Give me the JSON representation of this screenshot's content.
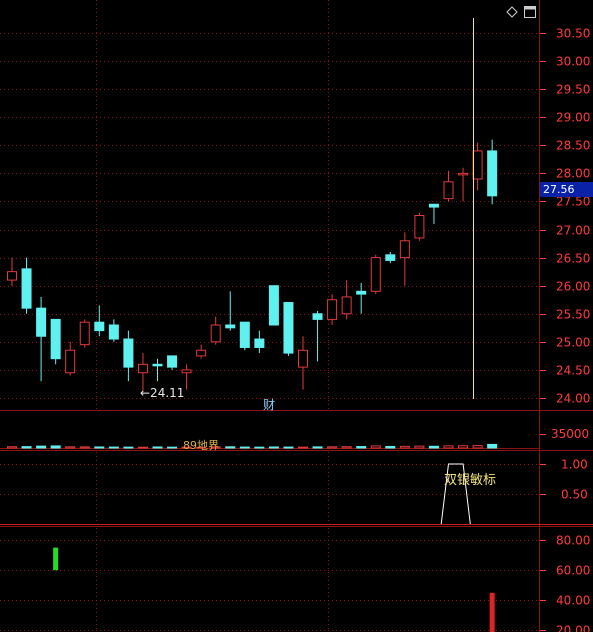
{
  "colors": {
    "up": "#e03a3a",
    "down": "#5ff0f0",
    "grid": "#8a1414",
    "axis_text": "#ff3b3b",
    "background": "#000000",
    "vertical_line": "#f2e37a",
    "indicator_line": "#ffffff",
    "green_bar": "#22dd22",
    "red_bar": "#e02222"
  },
  "price_panel": {
    "axis_labels": [
      "30.50",
      "30.00",
      "29.50",
      "29.00",
      "28.50",
      "28.00",
      "27.50",
      "27.00",
      "26.50",
      "26.00",
      "25.50",
      "25.00",
      "24.50",
      "24.00"
    ],
    "current_price_tag": "27.56",
    "low_marker": "←24.11",
    "event_marker": "财"
  },
  "volume_panel": {
    "axis_label": "35000",
    "overlay_text": "89地界"
  },
  "signal_panel": {
    "axis_labels": [
      "1.00",
      "0.50"
    ],
    "signal_label": "双银敏标"
  },
  "oscillator_panel": {
    "axis_labels": [
      "80.00",
      "60.00",
      "40.00",
      "20.00"
    ]
  },
  "toolbar": {
    "icons": [
      "diamond-icon",
      "window-icon"
    ]
  },
  "chart_data": [
    {
      "type": "candlestick",
      "ylim": [
        23.75,
        30.85
      ],
      "y_ticks": [
        30.5,
        30.0,
        29.5,
        29.0,
        28.5,
        28.0,
        27.5,
        27.0,
        26.5,
        26.0,
        25.5,
        25.0,
        24.5,
        24.0
      ],
      "candles": [
        {
          "o": 26.1,
          "h": 26.5,
          "l": 26.0,
          "c": 26.25
        },
        {
          "o": 26.3,
          "h": 26.5,
          "l": 25.5,
          "c": 25.6
        },
        {
          "o": 25.6,
          "h": 25.8,
          "l": 24.3,
          "c": 25.1
        },
        {
          "o": 25.4,
          "h": 25.4,
          "l": 24.6,
          "c": 24.7
        },
        {
          "o": 24.45,
          "h": 25.0,
          "l": 24.4,
          "c": 24.85
        },
        {
          "o": 24.95,
          "h": 25.4,
          "l": 24.9,
          "c": 25.35
        },
        {
          "o": 25.35,
          "h": 25.65,
          "l": 25.1,
          "c": 25.2
        },
        {
          "o": 25.3,
          "h": 25.4,
          "l": 25.0,
          "c": 25.05
        },
        {
          "o": 25.05,
          "h": 25.2,
          "l": 24.3,
          "c": 24.55
        },
        {
          "o": 24.45,
          "h": 24.8,
          "l": 24.11,
          "c": 24.6
        },
        {
          "o": 24.6,
          "h": 24.7,
          "l": 24.3,
          "c": 24.58
        },
        {
          "o": 24.75,
          "h": 24.75,
          "l": 24.5,
          "c": 24.55
        },
        {
          "o": 24.45,
          "h": 24.6,
          "l": 24.15,
          "c": 24.5
        },
        {
          "o": 24.75,
          "h": 24.95,
          "l": 24.7,
          "c": 24.85
        },
        {
          "o": 25.0,
          "h": 25.45,
          "l": 24.95,
          "c": 25.3
        },
        {
          "o": 25.3,
          "h": 25.9,
          "l": 25.2,
          "c": 25.25
        },
        {
          "o": 25.35,
          "h": 25.35,
          "l": 24.85,
          "c": 24.9
        },
        {
          "o": 25.05,
          "h": 25.2,
          "l": 24.8,
          "c": 24.9
        },
        {
          "o": 26.0,
          "h": 26.0,
          "l": 25.3,
          "c": 25.3
        },
        {
          "o": 25.7,
          "h": 25.7,
          "l": 24.75,
          "c": 24.8
        },
        {
          "o": 24.55,
          "h": 25.1,
          "l": 24.15,
          "c": 24.85
        },
        {
          "o": 25.5,
          "h": 25.55,
          "l": 24.65,
          "c": 25.4
        },
        {
          "o": 25.4,
          "h": 25.85,
          "l": 25.3,
          "c": 25.75
        },
        {
          "o": 25.5,
          "h": 26.1,
          "l": 25.4,
          "c": 25.8
        },
        {
          "o": 25.9,
          "h": 26.05,
          "l": 25.5,
          "c": 25.85
        },
        {
          "o": 25.9,
          "h": 26.55,
          "l": 25.85,
          "c": 26.5
        },
        {
          "o": 26.55,
          "h": 26.6,
          "l": 26.4,
          "c": 26.45
        },
        {
          "o": 26.5,
          "h": 26.95,
          "l": 26.0,
          "c": 26.8
        },
        {
          "o": 26.85,
          "h": 27.3,
          "l": 26.8,
          "c": 27.25
        },
        {
          "o": 27.45,
          "h": 27.45,
          "l": 27.1,
          "c": 27.4
        },
        {
          "o": 27.55,
          "h": 28.05,
          "l": 27.5,
          "c": 27.85
        },
        {
          "o": 28.0,
          "h": 28.1,
          "l": 27.5,
          "c": 28.0
        },
        {
          "o": 27.9,
          "h": 28.55,
          "l": 27.7,
          "c": 28.4
        },
        {
          "o": 28.4,
          "h": 28.6,
          "l": 27.45,
          "c": 27.6
        }
      ]
    },
    {
      "type": "bar",
      "name": "volume",
      "ylim": [
        0,
        35000
      ],
      "values": [
        1500,
        1600,
        2200,
        2400,
        1400,
        1300,
        1200,
        1100,
        1000,
        900,
        1200,
        1000,
        900,
        800,
        1300,
        1400,
        1100,
        1000,
        1200,
        1100,
        1000,
        1300,
        1400,
        1500,
        1700,
        2400,
        1800,
        1900,
        2200,
        2000,
        2500,
        2600,
        2800,
        4200
      ]
    },
    {
      "type": "line",
      "name": "signal",
      "ylim": [
        0,
        1.2
      ],
      "y_ticks": [
        1.0,
        0.5
      ],
      "x": [
        29,
        30,
        31,
        32
      ],
      "values": [
        0,
        1,
        1,
        0
      ]
    },
    {
      "type": "bar",
      "name": "oscillator",
      "ylim": [
        19,
        88
      ],
      "y_ticks": [
        80,
        60,
        40,
        20
      ],
      "bars": [
        {
          "x": 3,
          "from": 60,
          "to": 75,
          "color": "green"
        },
        {
          "x": 33,
          "from": 19,
          "to": 45,
          "color": "red"
        }
      ]
    }
  ]
}
